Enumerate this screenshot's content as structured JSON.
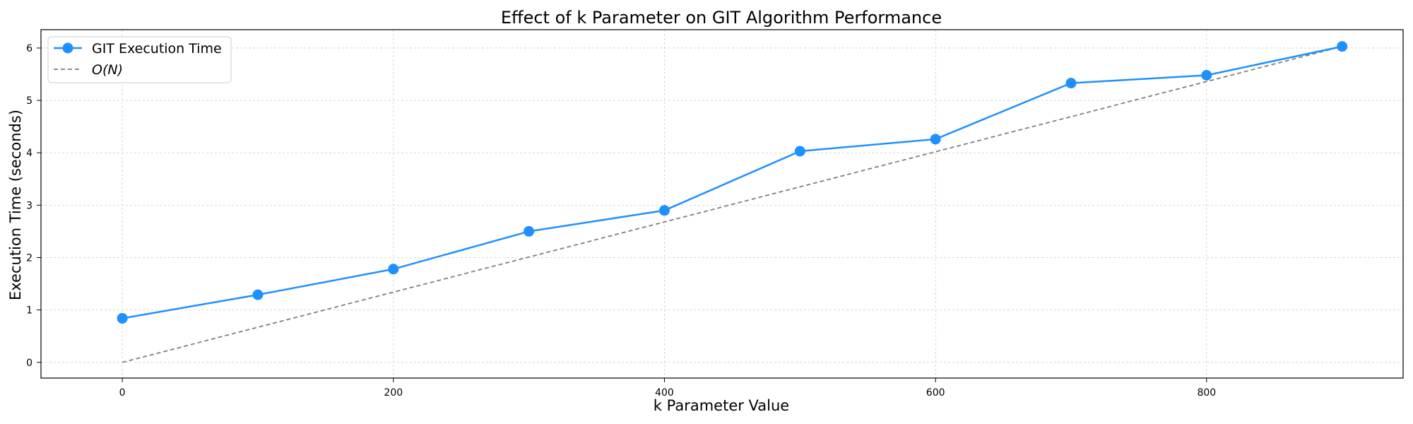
{
  "chart_data": {
    "type": "line",
    "title": "Effect of k Parameter on GIT Algorithm Performance",
    "xlabel": "k Parameter Value",
    "ylabel": "Execution Time (seconds)",
    "xlim": [
      -60,
      945
    ],
    "ylim": [
      -0.3,
      6.35
    ],
    "xticks": [
      0,
      200,
      400,
      600,
      800
    ],
    "yticks": [
      0,
      1,
      2,
      3,
      4,
      5,
      6
    ],
    "grid": true,
    "legend": "top-left",
    "series": [
      {
        "name": "GIT Execution Time",
        "style": "solid-with-markers",
        "color": "#1e90ff",
        "x": [
          0,
          100,
          200,
          300,
          400,
          500,
          600,
          700,
          800,
          900
        ],
        "y": [
          0.84,
          1.29,
          1.78,
          2.5,
          2.9,
          4.03,
          4.26,
          5.33,
          5.48,
          6.03
        ]
      },
      {
        "name": "O(N)",
        "style": "dashed",
        "color": "#7f7f7f",
        "x": [
          0,
          900
        ],
        "y": [
          0,
          6.03
        ]
      }
    ]
  }
}
